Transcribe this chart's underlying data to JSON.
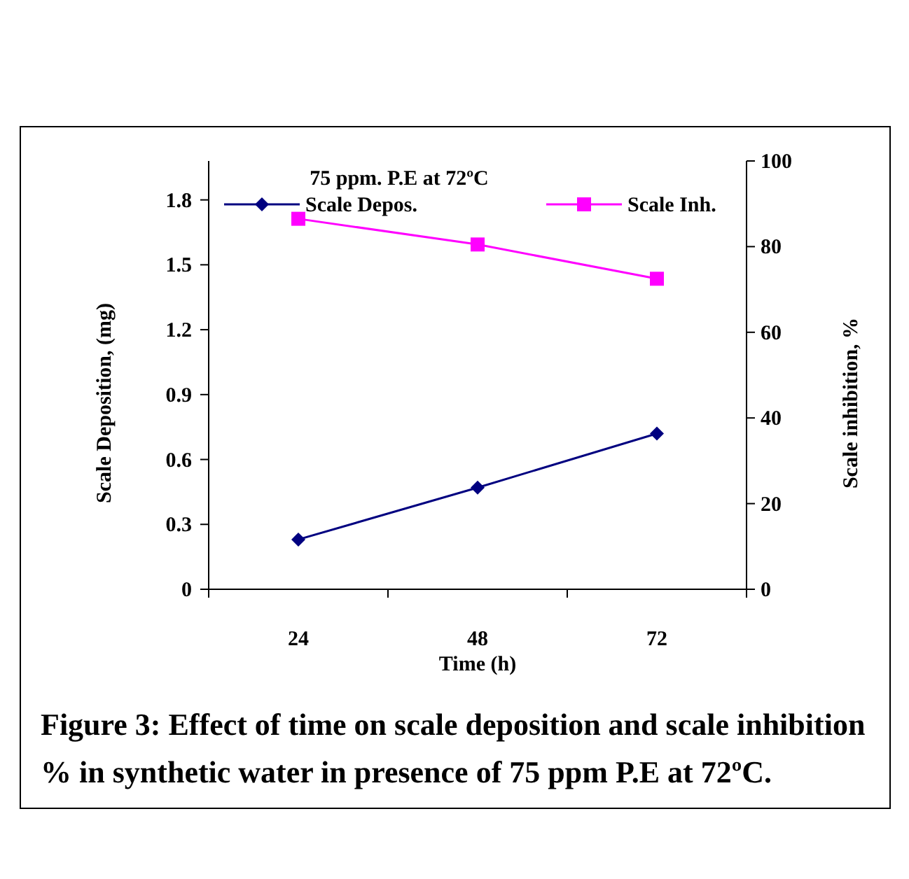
{
  "chart_data": {
    "type": "line",
    "title": "75 ppm. P.E at 72ºC",
    "xlabel": "Time (h)",
    "ylabel": "Scale Deposition, (mg)",
    "y2label": "Scale inhibition, %",
    "categories": [
      "24",
      "48",
      "72"
    ],
    "series": [
      {
        "name": "Scale Depos.",
        "color": "#000080",
        "values": [
          0.23,
          0.47,
          0.72
        ],
        "marker": "diamond"
      },
      {
        "name": "Scale Inh.",
        "color": "#ff00ff",
        "values": [
          86.5,
          80.5,
          72.5
        ],
        "marker": "square",
        "axis": "y2"
      }
    ],
    "ylim": [
      0,
      1.98
    ],
    "yticks": [
      0,
      0.3,
      0.6,
      0.9,
      1.2,
      1.5,
      1.8
    ],
    "y2lim": [
      0,
      100
    ],
    "y2ticks": [
      0,
      20,
      40,
      60,
      80,
      100
    ],
    "legend": "top",
    "grid": false,
    "annotations": [
      "Figure 3: Effect of time on scale deposition and scale inhibition % in synthetic water in presence of 75 ppm P.E at 72ºC."
    ]
  }
}
